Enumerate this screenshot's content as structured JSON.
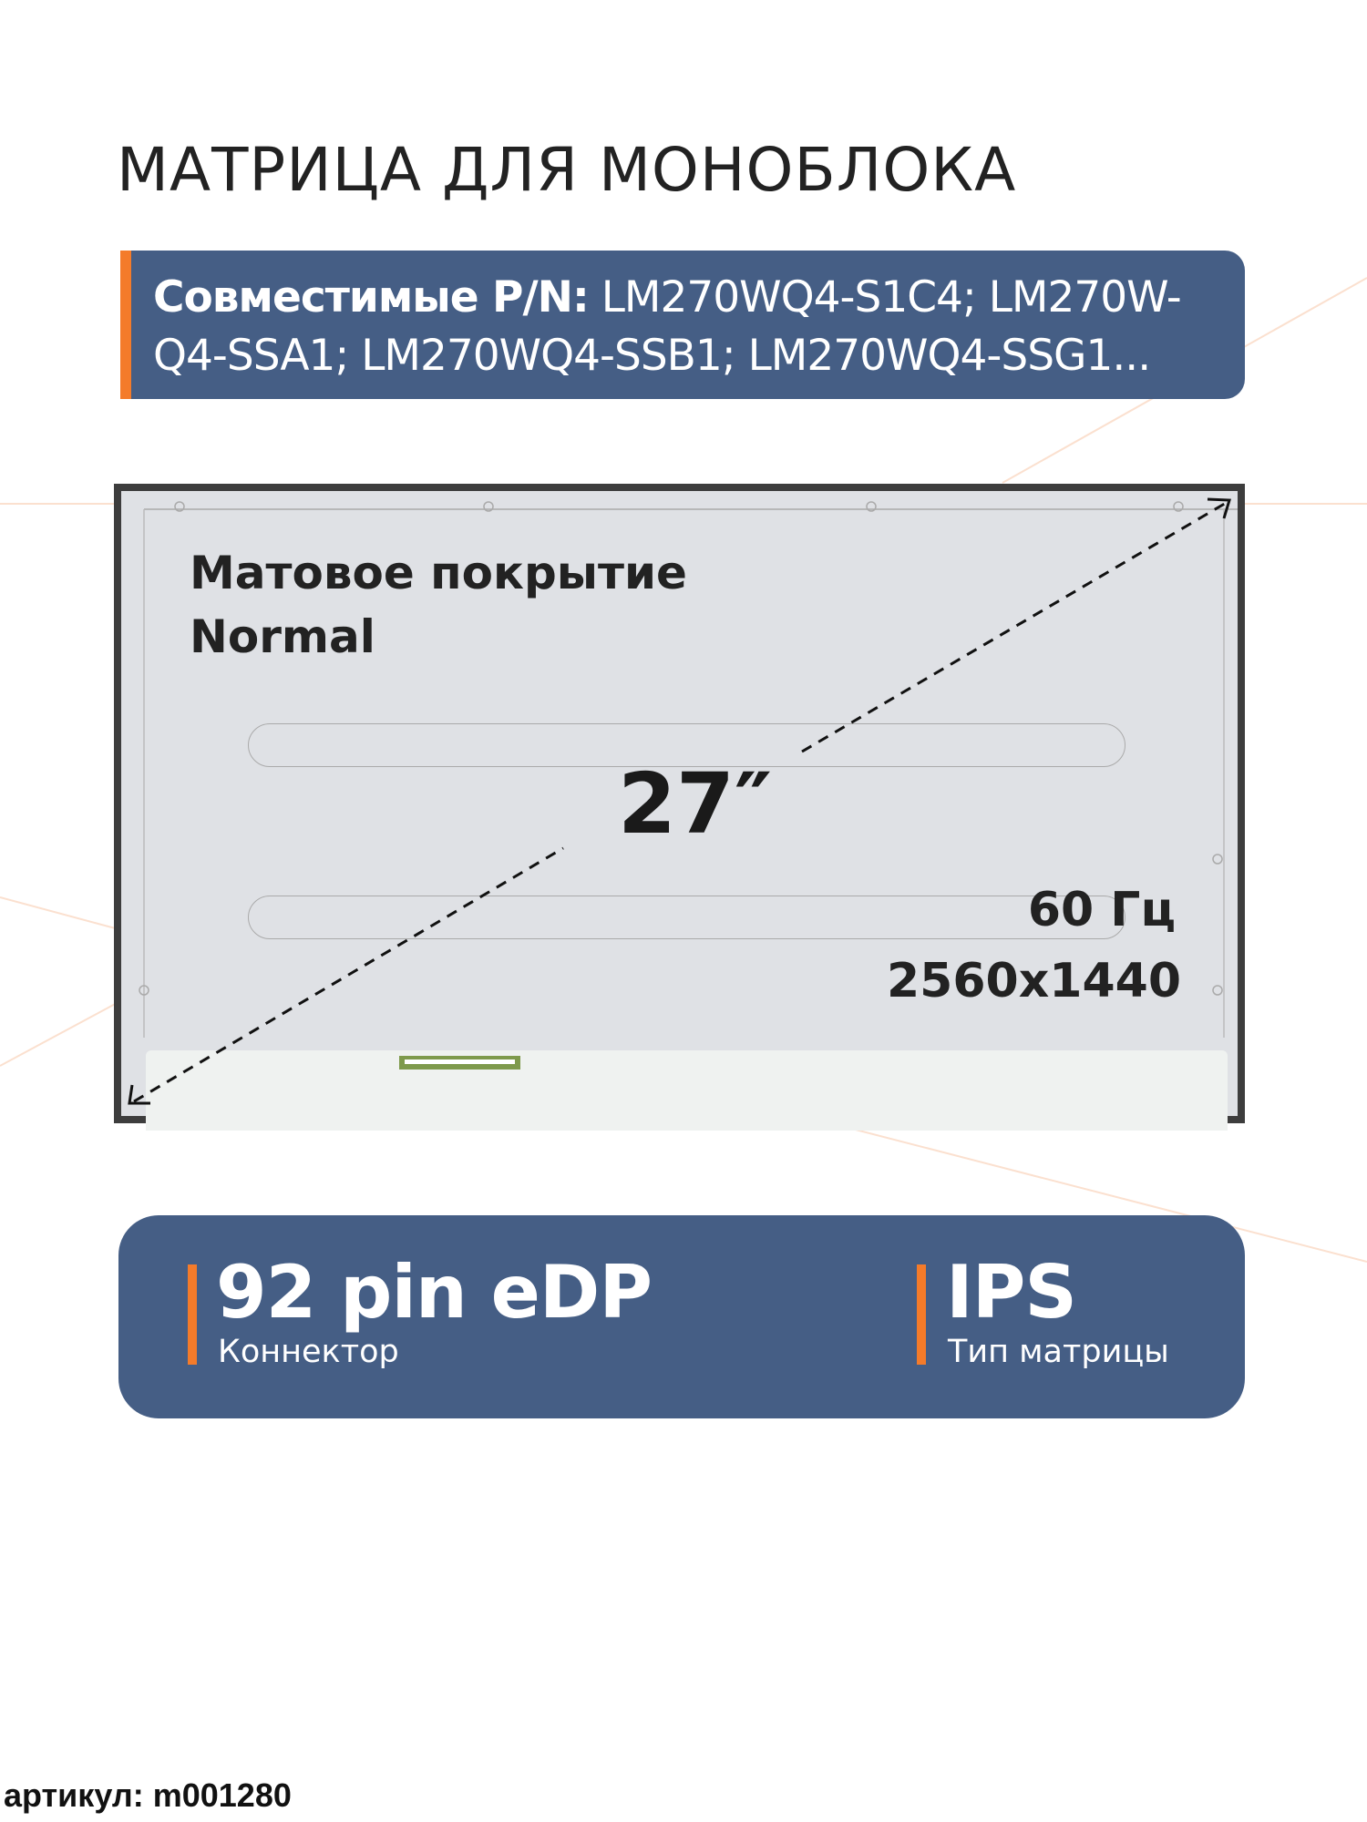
{
  "title": "МАТРИЦА ДЛЯ МОНОБЛОКА",
  "compatible": {
    "label": "Совместимые P/N:",
    "line1": "LM270WQ4-S1C4; LM270W-",
    "line2": "Q4-SSA1; LM270WQ4-SSB1; LM270WQ4-SSG1..."
  },
  "panel": {
    "coating": "Матовое покрытие",
    "coating_type": "Normal",
    "diagonal": "27″",
    "refresh": "60 Гц",
    "resolution": "2560x1440"
  },
  "specs": {
    "connector_value": "92 pin eDP",
    "connector_label": "Коннектор",
    "matrix_value": "IPS",
    "matrix_label": "Тип матрицы"
  },
  "article": "артикул: m001280",
  "colors": {
    "accent": "#f47b2a",
    "box": "#455e85",
    "bezel": "#3d3d3d"
  }
}
